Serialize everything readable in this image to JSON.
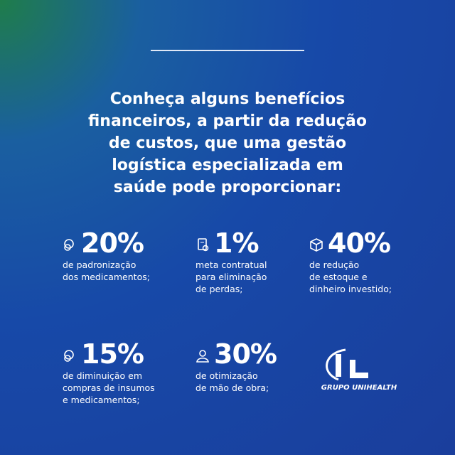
{
  "headline": [
    "Conheça alguns benefícios",
    "financeiros, a partir da redução",
    "de custos, que uma gestão",
    "logística especializada em",
    "saúde pode proporcionar:"
  ],
  "stats": [
    {
      "value": "20%",
      "description": [
        "de padronização",
        "dos medicamentos;"
      ]
    },
    {
      "value": "1%",
      "description": [
        "meta contratual",
        "para eliminação",
        "de perdas;"
      ]
    },
    {
      "value": "40%",
      "description": [
        "de redução",
        "de estoque e",
        "dinheiro investido;"
      ]
    },
    {
      "value": "15%",
      "description": [
        "de diminuição em",
        "compras de insumos",
        "e medicamentos;"
      ]
    },
    {
      "value": "30%",
      "description": [
        "de otimização",
        "de mão de obra;"
      ]
    }
  ],
  "logo": {
    "text": "GRUPO UNIHEALTH"
  }
}
